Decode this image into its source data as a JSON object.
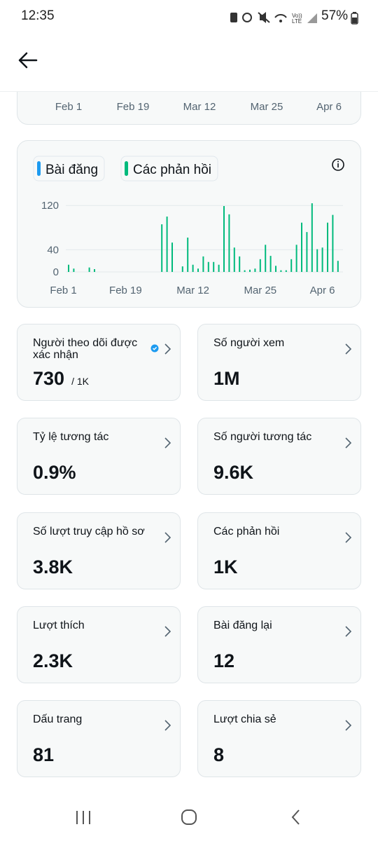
{
  "status_bar": {
    "time": "12:35",
    "battery": "57%"
  },
  "top_chart": {
    "x_labels": [
      "Feb 1",
      "Feb 19",
      "Mar 12",
      "Mar 25",
      "Apr 6"
    ]
  },
  "chart_data": {
    "type": "bar",
    "x": [
      0,
      1,
      4,
      5,
      18,
      19,
      20,
      22,
      23,
      24,
      25,
      26,
      27,
      28,
      29,
      30,
      31,
      32,
      33,
      34,
      35,
      36,
      37,
      38,
      39,
      40,
      41,
      42,
      43,
      44,
      45,
      46,
      47,
      48,
      49,
      50,
      51,
      52
    ],
    "series": [
      {
        "name": "Bài đăng",
        "color": "#1d9bf0",
        "values": [
          0,
          0,
          0,
          0,
          0,
          0,
          0,
          0,
          0,
          0,
          0,
          0,
          0,
          0,
          0,
          0,
          0,
          0,
          0,
          0,
          0,
          0,
          0,
          0,
          0,
          0,
          0,
          0,
          0,
          0,
          0,
          0,
          0,
          0,
          0,
          0,
          0,
          0
        ]
      },
      {
        "name": "Các phản hồi",
        "color": "#00ba7c",
        "values": [
          13,
          6,
          8,
          5,
          86,
          100,
          53,
          10,
          62,
          13,
          6,
          28,
          18,
          18,
          13,
          119,
          104,
          44,
          28,
          3,
          4,
          6,
          23,
          49,
          29,
          11,
          3,
          3,
          23,
          49,
          89,
          72,
          124,
          41,
          44,
          89,
          103,
          20
        ]
      }
    ],
    "xlim": [
      -2,
      54
    ],
    "xticks": [
      {
        "value": -1,
        "label": "Feb 1"
      },
      {
        "value": 11,
        "label": "Feb 19"
      },
      {
        "value": 24,
        "label": "Mar 12"
      },
      {
        "value": 37,
        "label": "Mar 25"
      },
      {
        "value": 49,
        "label": "Apr 6"
      }
    ],
    "ylim": [
      0,
      125
    ],
    "yticks": [
      0,
      40,
      120
    ],
    "grid": true
  },
  "cards": [
    {
      "title": "Người theo dõi được xác nhận",
      "value": "730",
      "total": "/ 1K",
      "verified": true
    },
    {
      "title": "Số người xem",
      "value": "1M"
    },
    {
      "title": "Tỷ lệ tương tác",
      "value": "0.9%"
    },
    {
      "title": "Số người tương tác",
      "value": "9.6K"
    },
    {
      "title": "Số lượt truy cập hồ sơ",
      "value": "3.8K"
    },
    {
      "title": "Các phản hồi",
      "value": "1K"
    },
    {
      "title": "Lượt thích",
      "value": "2.3K"
    },
    {
      "title": "Bài đăng lại",
      "value": "12"
    },
    {
      "title": "Dấu trang",
      "value": "81"
    },
    {
      "title": "Lượt chia sẻ",
      "value": "8"
    }
  ]
}
